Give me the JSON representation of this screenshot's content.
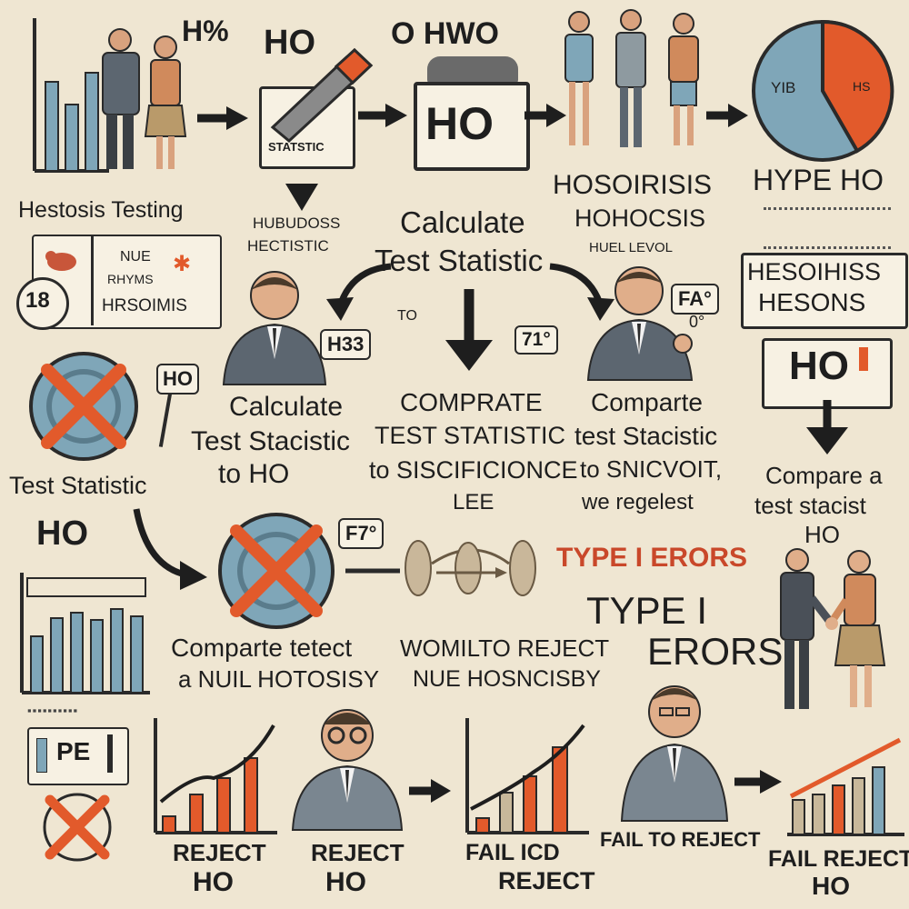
{
  "colors": {
    "accent": "#e25a2b",
    "steel": "#7fa6b8",
    "ink": "#2a2a2a",
    "paper": "#efe6d2",
    "suit": "#5c6670"
  },
  "row1": {
    "h_pct": "H%",
    "ho_top": "HO",
    "o_hwo": "O HWO",
    "ho_box": "HO",
    "statstic": "STATSTIC",
    "pie_left": "YIB",
    "pie_right": "HS",
    "hestosis": "Hestosis Testing",
    "hosoirisis": "HOSOIRISIS",
    "hohocsis": "HOHOCSIS",
    "huel_level": "HUEL LEVOL",
    "hype_ho": "HYPE HO"
  },
  "row2": {
    "hubudoss": "HUBUDOSS",
    "hectistic": "HECTISTIC",
    "calc_line1": "Calculate",
    "calc_line2": "Test Statistic",
    "num_18": "18",
    "nue": "NUE",
    "rhyms": "RHYMS",
    "hosoimis": "HRSOIMIS",
    "h33": "H33",
    "to": "TO",
    "seventy": "71°",
    "fa": "FA°",
    "zero": "0°",
    "hesoihiss": "HESOIHISS",
    "hesons": "HESONS"
  },
  "row3": {
    "ho_small": "HO",
    "calc_line1": "Calculate",
    "calc_line2": "Test Stacistic",
    "calc_line3": "to HO",
    "comprate1": "COMPRATE",
    "comprate2": "TEST STATISTIC",
    "comprate3": "to SISCIFICIONCE",
    "comprate4": "LEE",
    "compare1": "Comparte",
    "compare2": "test Stacistic",
    "compare3": "to SNICVOIT,",
    "compare4": "we regelest",
    "ho_box": "HO",
    "test_statistic": "Test Statistic",
    "compare_a1": "Compare a",
    "compare_a2": "test stacist",
    "compare_a3": "HO"
  },
  "row4": {
    "ho": "HO",
    "f7": "F7°",
    "type1": "TYPE I ERORS",
    "type_big1": "TYPE I",
    "type_big2": "ERORS",
    "compare_line1": "Comparte tetect",
    "compare_line2": "a NUIL HOTOSISY",
    "womilto_line1": "WOMILTO REJECT",
    "womilto_line2": "NUE HOSNCISBY"
  },
  "row5": {
    "pe": "PE",
    "reject1_line1": "REJECT",
    "reject1_line2": "HO",
    "reject2_line1": "REJECT",
    "reject2_line2": "HO",
    "fail_icd_line1": "FAIL ICD",
    "fail_icd_line2": "REJECT",
    "fail_to_reject": "FAIL TO REJECT",
    "fail_reject_line1": "FAIL REJECT",
    "fail_reject_line2": "HO"
  }
}
